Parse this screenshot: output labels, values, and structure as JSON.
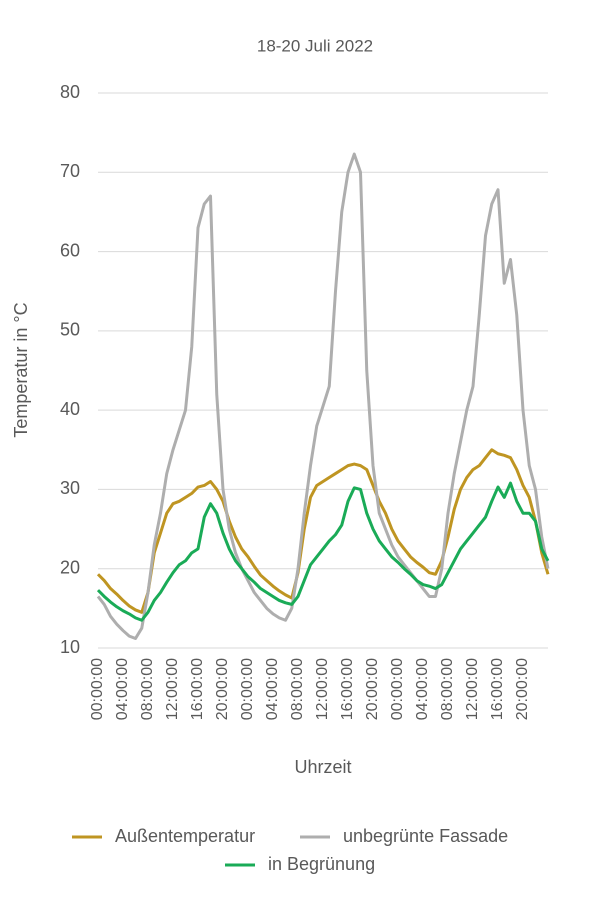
{
  "chart_data": {
    "type": "line",
    "title": "18-20 Juli 2022",
    "x_label": "Uhrzeit",
    "y_label": "Temperatur in °C",
    "categories": [
      "00:00:00",
      null,
      null,
      null,
      "04:00:00",
      null,
      null,
      null,
      "08:00:00",
      null,
      null,
      null,
      "12:00:00",
      null,
      null,
      null,
      "16:00:00",
      null,
      null,
      null,
      "20:00:00",
      null,
      null,
      null,
      "00:00:00",
      null,
      null,
      null,
      "04:00:00",
      null,
      null,
      null,
      "08:00:00",
      null,
      null,
      null,
      "12:00:00",
      null,
      null,
      null,
      "16:00:00",
      null,
      null,
      null,
      "20:00:00",
      null,
      null,
      null,
      "00:00:00",
      null,
      null,
      null,
      "04:00:00",
      null,
      null,
      null,
      "08:00:00",
      null,
      null,
      null,
      "12:00:00",
      null,
      null,
      null,
      "16:00:00",
      null,
      null,
      null,
      "20:00:00",
      null,
      null,
      null,
      null
    ],
    "series": [
      {
        "name": "Außentemperatur",
        "color": "#bf9522",
        "values": [
          19.3,
          18.5,
          17.5,
          16.8,
          16,
          15.3,
          14.8,
          14.5,
          17,
          22,
          24.5,
          27,
          28.2,
          28.5,
          29,
          29.5,
          30.3,
          30.5,
          31,
          30,
          28.5,
          26,
          24,
          22.5,
          21.5,
          20.3,
          19.2,
          18.5,
          17.8,
          17.2,
          16.7,
          16.3,
          19.5,
          25,
          29,
          30.5,
          31,
          31.5,
          32,
          32.5,
          33,
          33.2,
          33,
          32.5,
          30.5,
          28.5,
          27,
          25,
          23.5,
          22.5,
          21.5,
          20.8,
          20.2,
          19.5,
          19.3,
          21,
          24,
          27.5,
          30,
          31.5,
          32.5,
          33,
          34,
          35,
          34.5,
          34.3,
          34,
          32.5,
          30.5,
          29,
          26,
          22,
          19.3
        ]
      },
      {
        "name": "unbegrünte Fassade",
        "color": "#aeaeae",
        "values": [
          16.5,
          15.5,
          14,
          13,
          12.2,
          11.5,
          11.2,
          12.5,
          17,
          23,
          27,
          32,
          35,
          37.5,
          40,
          48,
          63,
          66,
          67,
          42,
          30,
          25,
          22,
          20,
          18.5,
          17,
          16,
          15,
          14.3,
          13.8,
          13.5,
          15,
          20,
          27,
          33,
          38,
          40.5,
          43,
          55,
          65,
          70,
          72.3,
          70,
          45,
          33,
          27,
          25,
          23,
          21.5,
          20.5,
          19.5,
          18.5,
          17.5,
          16.5,
          16.5,
          20,
          27,
          32,
          36,
          40,
          43,
          52,
          62,
          66,
          67.8,
          56,
          59,
          52,
          40,
          33,
          30,
          24,
          20
        ]
      },
      {
        "name": "in Begrünung",
        "color": "#1aab57",
        "values": [
          17.3,
          16.5,
          15.8,
          15.2,
          14.7,
          14.3,
          13.8,
          13.5,
          14.5,
          16,
          17,
          18.3,
          19.5,
          20.5,
          21,
          22,
          22.5,
          26.5,
          28.2,
          27,
          24.5,
          22.5,
          21,
          20,
          19,
          18.3,
          17.5,
          17,
          16.5,
          16,
          15.7,
          15.5,
          16.5,
          18.5,
          20.5,
          21.5,
          22.5,
          23.5,
          24.3,
          25.5,
          28.5,
          30.2,
          30,
          27,
          25,
          23.5,
          22.5,
          21.5,
          20.8,
          20,
          19.3,
          18.5,
          18,
          17.8,
          17.5,
          18,
          19.5,
          21,
          22.5,
          23.5,
          24.5,
          25.5,
          26.5,
          28.5,
          30.3,
          29,
          30.8,
          28.5,
          27,
          27,
          26,
          22.5,
          21
        ]
      }
    ],
    "ylim": [
      10,
      80
    ],
    "yticks": [
      10,
      20,
      30,
      40,
      50,
      60,
      70,
      80
    ],
    "grid": true,
    "legend": "bottom"
  }
}
